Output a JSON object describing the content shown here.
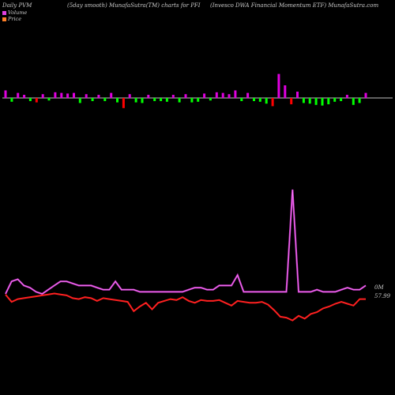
{
  "header": {
    "left": "Daily PVM",
    "center_left": "(5day smooth) MunafaSutra(TM) charts for PFI",
    "center_right": "(Invesco  DWA Financial Momentum ETF) MunafaSutra.com"
  },
  "legend": [
    {
      "label": "Volume",
      "color": "#e040e0"
    },
    {
      "label": "Price",
      "color": "#ff7f27"
    }
  ],
  "chart_data": {
    "type": "bar+line",
    "volume_bars": {
      "up_color": "#e000e0",
      "down_color": "#ff0000",
      "alt_color": "#00ff00",
      "values": [
        1.2,
        -0.6,
        0.8,
        0.5,
        -0.5,
        -0.7,
        0.6,
        -0.4,
        0.9,
        0.8,
        0.7,
        0.8,
        -0.8,
        0.6,
        -0.5,
        0.5,
        -0.5,
        0.8,
        -0.7,
        -1.6,
        0.6,
        -0.7,
        -0.8,
        0.5,
        -0.5,
        -0.5,
        -0.6,
        0.5,
        -0.7,
        0.6,
        -0.7,
        -0.6,
        0.7,
        -0.4,
        0.9,
        0.8,
        0.6,
        1.2,
        -0.5,
        0.8,
        -0.5,
        -0.6,
        -0.9,
        -1.3,
        3.8,
        2.0,
        -1.0,
        1.0,
        -0.8,
        -0.9,
        -1.1,
        -1.2,
        -1.0,
        -0.6,
        -0.5,
        0.5,
        -1.1,
        -0.8,
        0.8
      ],
      "colors": [
        "m",
        "g",
        "m",
        "m",
        "g",
        "r",
        "m",
        "g",
        "m",
        "m",
        "m",
        "m",
        "g",
        "m",
        "g",
        "m",
        "g",
        "m",
        "g",
        "r",
        "m",
        "g",
        "g",
        "m",
        "g",
        "g",
        "g",
        "m",
        "g",
        "m",
        "g",
        "g",
        "m",
        "g",
        "m",
        "m",
        "m",
        "m",
        "g",
        "m",
        "g",
        "g",
        "g",
        "r",
        "m",
        "m",
        "r",
        "m",
        "g",
        "g",
        "g",
        "g",
        "g",
        "g",
        "g",
        "m",
        "g",
        "g",
        "m"
      ]
    },
    "volume_line": {
      "color": "#e040e0",
      "values": [
        10,
        10.6,
        10.7,
        10.4,
        10.3,
        10.1,
        10.0,
        10.2,
        10.4,
        10.6,
        10.6,
        10.5,
        10.4,
        10.4,
        10.4,
        10.3,
        10.2,
        10.2,
        10.6,
        10.2,
        10.2,
        10.2,
        10.1,
        10.1,
        10.1,
        10.1,
        10.1,
        10.1,
        10.1,
        10.1,
        10.2,
        10.3,
        10.3,
        10.2,
        10.2,
        10.4,
        10.4,
        10.4,
        10.9,
        10.1,
        10.1,
        10.1,
        10.1,
        10.1,
        10.1,
        10.1,
        10.1,
        15.0,
        10.1,
        10.1,
        10.1,
        10.2,
        10.1,
        10.1,
        10.1,
        10.2,
        10.3,
        10.2,
        10.2,
        10.4
      ],
      "label": "0M"
    },
    "price_line": {
      "color": "#ff2020",
      "values": [
        57.99,
        57.6,
        57.75,
        57.8,
        57.85,
        57.9,
        57.95,
        58.0,
        58.05,
        58.0,
        57.95,
        57.8,
        57.75,
        57.85,
        57.8,
        57.65,
        57.8,
        57.75,
        57.7,
        57.65,
        57.6,
        57.1,
        57.35,
        57.55,
        57.2,
        57.55,
        57.65,
        57.75,
        57.7,
        57.85,
        57.65,
        57.55,
        57.7,
        57.65,
        57.65,
        57.7,
        57.55,
        57.4,
        57.65,
        57.6,
        57.55,
        57.55,
        57.6,
        57.45,
        57.15,
        56.8,
        56.75,
        56.6,
        56.85,
        56.7,
        56.95,
        57.05,
        57.25,
        57.35,
        57.5,
        57.6,
        57.5,
        57.4,
        57.75,
        57.75
      ],
      "label": "57.99"
    }
  }
}
